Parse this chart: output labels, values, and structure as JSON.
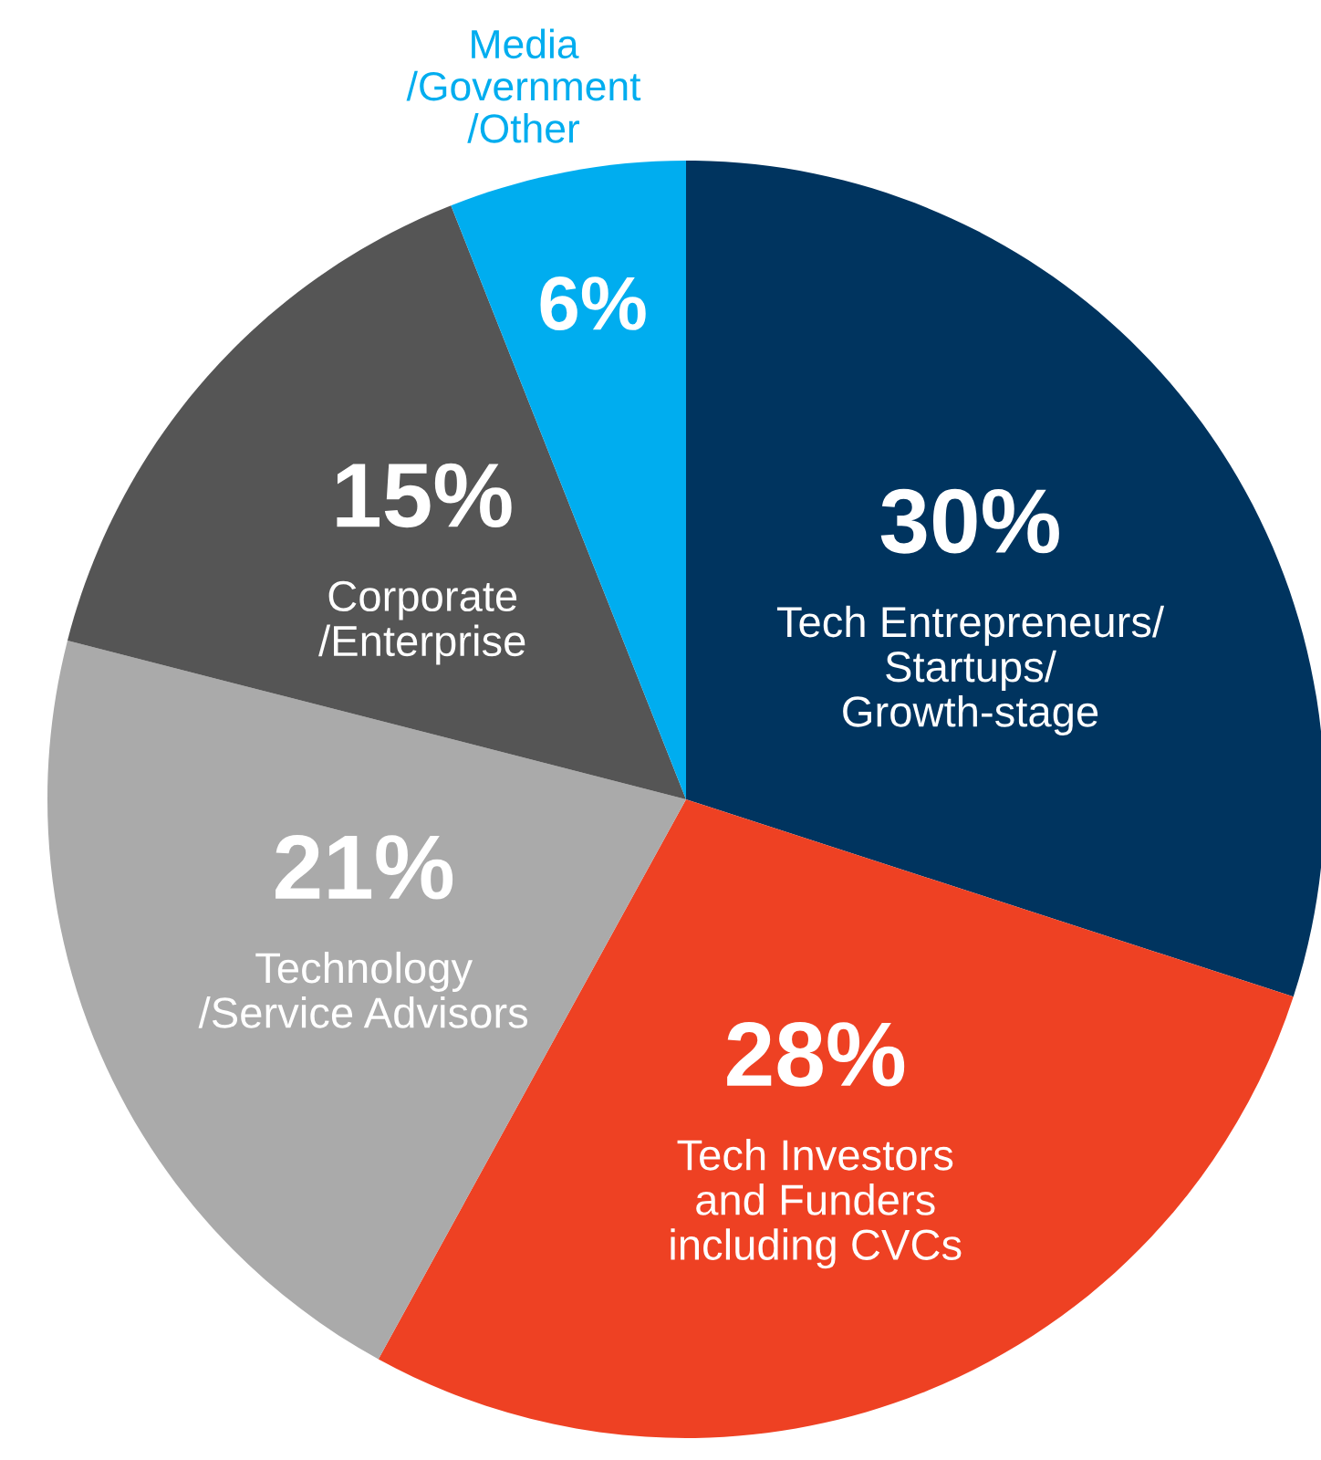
{
  "chart_data": {
    "type": "pie",
    "categories": [
      "Tech Entrepreneurs/\nStartups/\nGrowth-stage",
      "Tech Investors\nand Funders\nincluding CVCs",
      "Technology\n/Service Advisors",
      "Corporate\n/Enterprise",
      "Media\n/Government\n/Other"
    ],
    "values": [
      30,
      28,
      21,
      15,
      6
    ],
    "value_labels": [
      "30%",
      "28%",
      "21%",
      "15%",
      "6%"
    ],
    "colors": [
      "#00345f",
      "#ee4123",
      "#aaaaaa",
      "#555555",
      "#00adef"
    ],
    "legend": false
  }
}
